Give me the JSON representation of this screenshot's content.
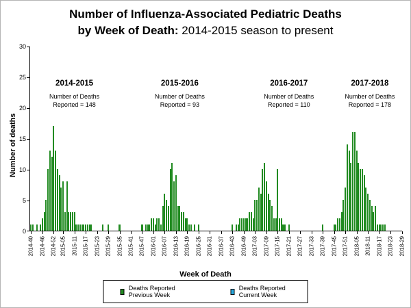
{
  "title": {
    "line1": "Number of Influenza-Associated Pediatric Deaths",
    "line2_bold": "by Week of Death:",
    "line2_regular": " 2014-2015 season to present"
  },
  "chart_data": {
    "type": "bar",
    "title": "Number of Influenza-Associated Pediatric Deaths by Week of Death: 2014-2015 season to present",
    "xlabel": "Week of Death",
    "ylabel": "Number of deaths",
    "ylim": [
      0,
      30
    ],
    "y_ticks": [
      0,
      5,
      10,
      15,
      20,
      25,
      30
    ],
    "grid": false,
    "bar_color": "#228b22",
    "week_ranges": [
      {
        "year": "2014",
        "from": 40,
        "to": 52
      },
      {
        "year": "2015",
        "from": 1,
        "to": 52
      },
      {
        "year": "2016",
        "from": 1,
        "to": 52
      },
      {
        "year": "2017",
        "from": 1,
        "to": 52
      },
      {
        "year": "2018",
        "from": 1,
        "to": 29
      }
    ],
    "x_tick_labels": [
      "2014-40",
      "2014-46",
      "2014-52",
      "2015-05",
      "2015-11",
      "2015-17",
      "2015-23",
      "2015-29",
      "2015-35",
      "2015-41",
      "2015-47",
      "2016-01",
      "2016-07",
      "2016-13",
      "2016-19",
      "2016-25",
      "2016-31",
      "2016-37",
      "2016-43",
      "2016-49",
      "2017-03",
      "2017-09",
      "2017-15",
      "2017-21",
      "2017-27",
      "2017-33",
      "2017-39",
      "2017-45",
      "2017-51",
      "2018-05",
      "2018-11",
      "2018-17",
      "2018-23",
      "2018-29"
    ],
    "values": [
      1,
      1,
      0,
      1,
      0,
      1,
      2,
      3,
      5,
      10,
      13,
      12,
      17,
      13,
      10,
      9,
      7,
      8,
      3,
      8,
      3,
      3,
      3,
      3,
      1,
      1,
      1,
      1,
      1,
      1,
      1,
      1,
      1,
      0,
      0,
      0,
      0,
      0,
      1,
      0,
      0,
      1,
      0,
      0,
      0,
      0,
      0,
      1,
      0,
      0,
      0,
      0,
      0,
      0,
      0,
      0,
      0,
      0,
      0,
      1,
      0,
      1,
      1,
      1,
      2,
      2,
      1,
      2,
      2,
      1,
      4,
      6,
      5,
      4,
      10,
      11,
      8,
      9,
      4,
      4,
      3,
      3,
      2,
      2,
      1,
      1,
      0,
      1,
      0,
      1,
      0,
      0,
      0,
      0,
      0,
      0,
      0,
      0,
      0,
      0,
      0,
      0,
      0,
      0,
      0,
      0,
      0,
      1,
      0,
      1,
      1,
      2,
      2,
      2,
      2,
      2,
      3,
      3,
      2,
      5,
      5,
      7,
      6,
      10,
      11,
      8,
      6,
      5,
      4,
      2,
      2,
      10,
      2,
      2,
      1,
      1,
      0,
      1,
      0,
      0,
      0,
      0,
      0,
      0,
      0,
      0,
      0,
      0,
      0,
      0,
      0,
      0,
      0,
      0,
      0,
      1,
      0,
      0,
      0,
      0,
      0,
      1,
      1,
      2,
      2,
      3,
      5,
      7,
      14,
      13,
      11,
      16,
      16,
      13,
      11,
      10,
      10,
      9,
      7,
      6,
      5,
      4,
      3,
      4,
      1,
      1,
      1,
      1,
      1,
      0,
      0,
      0,
      0,
      0,
      0,
      0,
      0,
      0
    ],
    "annotations": [
      {
        "season": "2014-2015",
        "line1": "Number of Deaths",
        "line2": "Reported = 148",
        "anchor_week": "2015-11"
      },
      {
        "season": "2015-2016",
        "line1": "Number of Deaths",
        "line2": "Reported = 93",
        "anchor_week": "2016-15"
      },
      {
        "season": "2016-2017",
        "line1": "Number of Deaths",
        "line2": "Reported = 110",
        "anchor_week": "2017-21"
      },
      {
        "season": "2017-2018",
        "line1": "Number of Deaths",
        "line2": "Reported = 178",
        "anchor_week": "2018-12"
      }
    ],
    "legend": [
      {
        "label": "Deaths Reported Previous Week",
        "color": "#228b22"
      },
      {
        "label": "Deaths Reported Current Week",
        "color": "#29abe2"
      }
    ]
  }
}
